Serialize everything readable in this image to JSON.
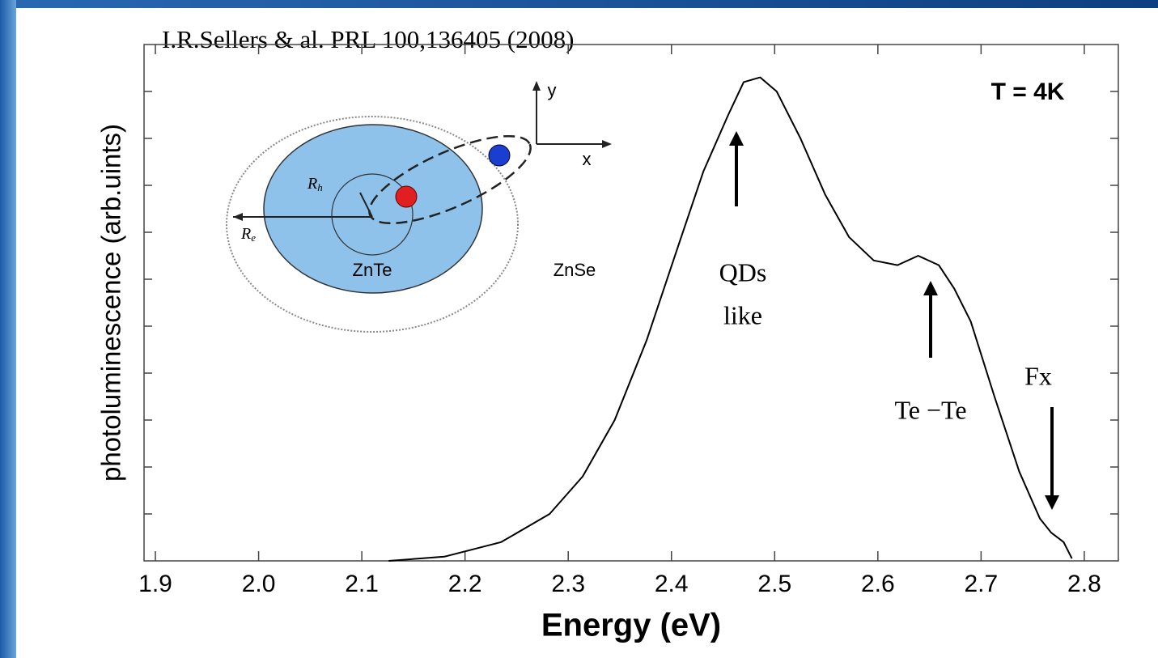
{
  "chart_data": {
    "type": "line",
    "title": "I.R.Sellers & al. PRL 100,136405 (2008)",
    "x_label": "Energy (eV)",
    "y_label": "photoluminescence (arb.uints)",
    "x": [
      2.126,
      2.18,
      2.235,
      2.282,
      2.314,
      2.345,
      2.376,
      2.408,
      2.431,
      2.455,
      2.47,
      2.486,
      2.502,
      2.525,
      2.549,
      2.572,
      2.596,
      2.619,
      2.639,
      2.659,
      2.674,
      2.69,
      2.713,
      2.737,
      2.757,
      2.768,
      2.78,
      2.788
    ],
    "values": [
      0,
      0.009,
      0.04,
      0.1,
      0.18,
      0.3,
      0.47,
      0.68,
      0.83,
      0.95,
      1.02,
      1.03,
      1.0,
      0.9,
      0.78,
      0.69,
      0.64,
      0.63,
      0.65,
      0.63,
      0.58,
      0.51,
      0.35,
      0.19,
      0.09,
      0.06,
      0.04,
      0.005
    ],
    "color": "#000000",
    "xlim": [
      1.889,
      2.833
    ],
    "ylim": [
      0,
      1.1
    ],
    "xticks": [
      1.9,
      {
        "value": 2.0,
        "label": "2.0"
      },
      2.1,
      2.2,
      2.3,
      2.4,
      2.5,
      2.6,
      2.7,
      2.8
    ],
    "annotations": [
      "T = 4K",
      "QDs",
      "like",
      "Te −Te",
      "Fx"
    ]
  },
  "inset": {
    "labels": [
      "ZnTe",
      "ZnSe",
      "x",
      "y"
    ],
    "rh": "R",
    "rh_sub": "h",
    "re": "R",
    "re_sub": "e"
  }
}
